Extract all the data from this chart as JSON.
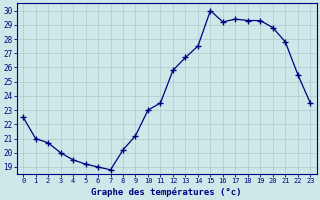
{
  "x": [
    0,
    1,
    2,
    3,
    4,
    5,
    6,
    7,
    8,
    9,
    10,
    11,
    12,
    13,
    14,
    15,
    16,
    17,
    18,
    19,
    20,
    21,
    22,
    23
  ],
  "y": [
    22.5,
    21.0,
    20.7,
    20.0,
    19.5,
    19.2,
    19.0,
    18.8,
    20.2,
    21.2,
    23.0,
    23.5,
    25.8,
    26.7,
    27.5,
    30.0,
    29.2,
    29.4,
    29.3,
    29.3,
    28.8,
    27.8,
    25.5,
    23.5
  ],
  "xlim": [
    -0.5,
    23.5
  ],
  "ylim": [
    18.5,
    30.5
  ],
  "yticks": [
    19,
    20,
    21,
    22,
    23,
    24,
    25,
    26,
    27,
    28,
    29,
    30
  ],
  "xticks": [
    0,
    1,
    2,
    3,
    4,
    5,
    6,
    7,
    8,
    9,
    10,
    11,
    12,
    13,
    14,
    15,
    16,
    17,
    18,
    19,
    20,
    21,
    22,
    23
  ],
  "xlabel": "Graphe des températures (°c)",
  "line_color": "#000080",
  "marker_color": "#000080",
  "bg_color": "#cce8e8",
  "grid_color": "#aacccc",
  "axis_color": "#000080",
  "label_color": "#000080"
}
